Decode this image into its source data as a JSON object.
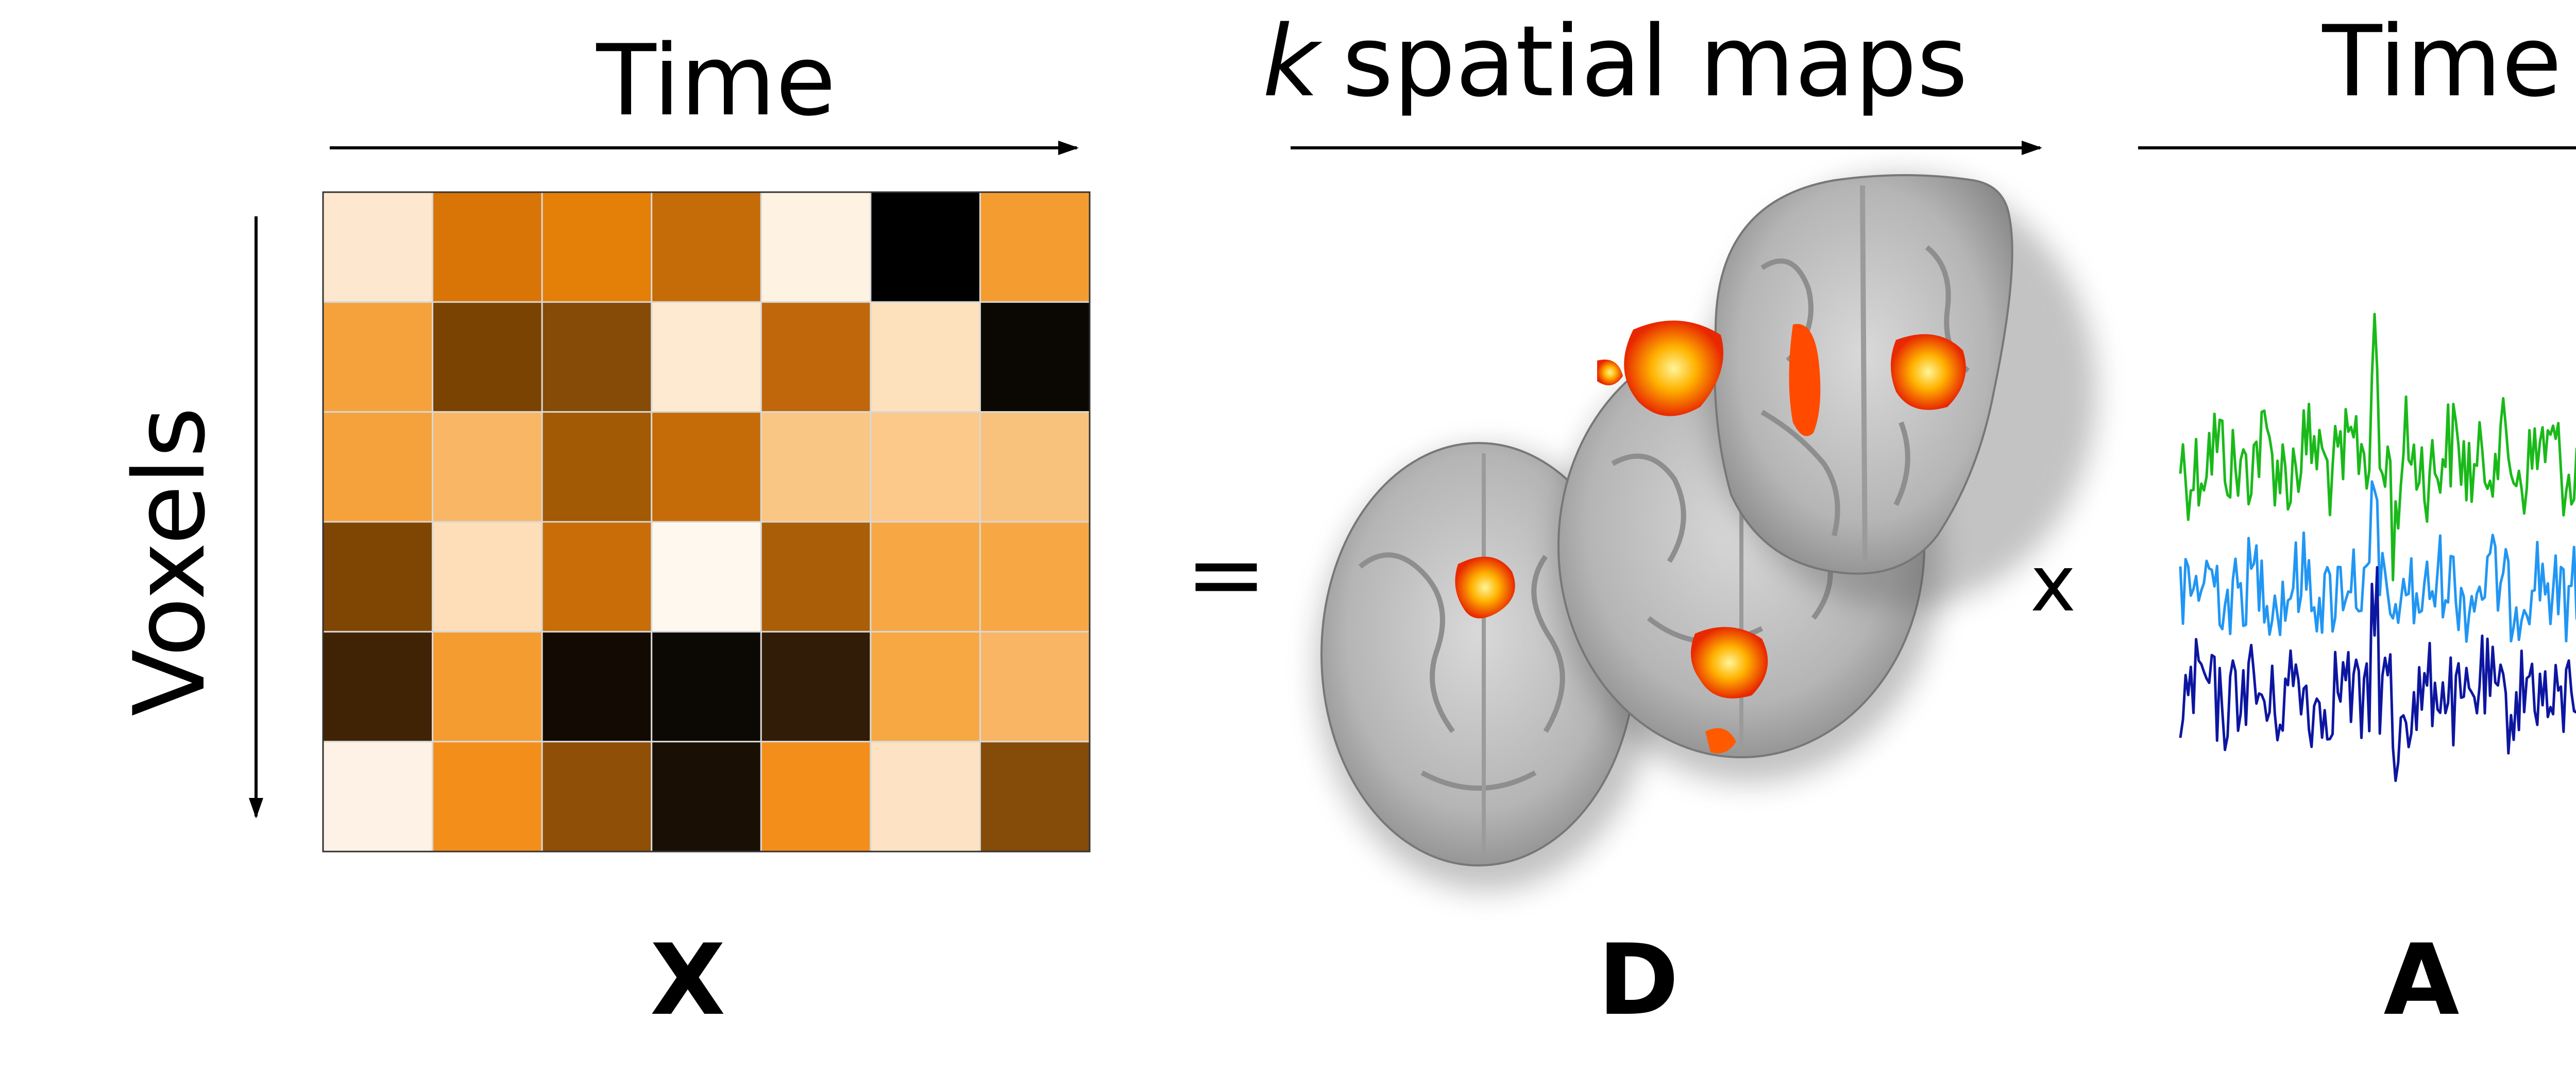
{
  "labels": {
    "time_left": "Time",
    "spatial": "spatial maps",
    "spatial_k": "k",
    "time_right": "Time",
    "voxels": "Voxels",
    "equals": "=",
    "times": "x",
    "X": "X",
    "D": "D",
    "A": "A"
  },
  "matrix": {
    "rows": 6,
    "cols": 7,
    "cells": [
      [
        "#fde7cf",
        "#d97406",
        "#e47f07",
        "#c56c08",
        "#fef2e3",
        "#000000",
        "#f59c30"
      ],
      [
        "#f6a23c",
        "#7b4302",
        "#854b07",
        "#fee9d1",
        "#c0670b",
        "#fde0bc",
        "#0b0702"
      ],
      [
        "#f6a23c",
        "#f9b664",
        "#a35a05",
        "#c56c08",
        "#fac683",
        "#fcc98b",
        "#f9c27c"
      ],
      [
        "#7e4503",
        "#fddeb8",
        "#c86d08",
        "#fff8ee",
        "#ab5e08",
        "#f7a845",
        "#f7a845"
      ],
      [
        "#3f2304",
        "#f59c30",
        "#130b03",
        "#0c0804",
        "#311c07",
        "#f7a843",
        "#f9b563"
      ],
      [
        "#fef2e6",
        "#f48e1b",
        "#8f4f06",
        "#1a0f04",
        "#f48e1b",
        "#fde3c4",
        "#854b08"
      ]
    ]
  },
  "timeseries": {
    "colors": [
      "#1ab91a",
      "#2196f3",
      "#0d16a0"
    ],
    "series_names": []
  },
  "brain_colors": {
    "tissue": "#bdbdbd",
    "activation": "#ff4a00",
    "hot": "#ffe100"
  }
}
